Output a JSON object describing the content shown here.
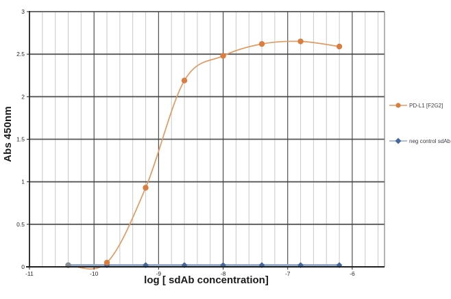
{
  "chart_data": {
    "type": "line",
    "title": "",
    "xlabel": "log [ sdAb concentration]",
    "ylabel": "Abs 450nm",
    "xlim": [
      -11,
      -5.5
    ],
    "ylim": [
      0,
      3
    ],
    "x_tick_values": [
      -11,
      -10,
      -9,
      -8,
      -7,
      -6
    ],
    "x_tick_labels": [
      "-11",
      "-10",
      "-9",
      "-8",
      "-7",
      "-6"
    ],
    "y_tick_values": [
      0,
      0.5,
      1,
      1.5,
      2,
      2.5,
      3
    ],
    "y_tick_labels": [
      "0",
      "0.5",
      "1",
      "1.5",
      "2",
      "2.5",
      "3"
    ],
    "x_minor_step": 0.2,
    "grid": "horizontal majors every 0.5; vertical majors every 1 with light minors every 0.2",
    "legend_position": "right",
    "x": [
      -10.4,
      -9.8,
      -9.2,
      -8.6,
      -8,
      -7.4,
      -6.8,
      -6.2
    ],
    "series": [
      {
        "name": "PD-L1 [F2G2]",
        "values": [
          0.02,
          0.05,
          0.93,
          2.19,
          2.48,
          2.62,
          2.65,
          2.59
        ],
        "marker": "circle",
        "smooth": true,
        "line_color": "#E09A62",
        "marker_color": "#D97E3E",
        "first_marker_color": "#8A8F96"
      },
      {
        "name": "neg control sdAb",
        "values": [
          0.02,
          0.02,
          0.02,
          0.02,
          0.02,
          0.02,
          0.02,
          0.02
        ],
        "marker": "diamond",
        "smooth": false,
        "line_color": "#94AAC6",
        "marker_color": "#44689D"
      }
    ],
    "colors": {
      "background": "#FFFFFF",
      "grid_minor": "#C8C8C8",
      "grid_major_vertical": "#3F3F3F",
      "grid_major_horizontal": "#555555",
      "plot_right_border": "#7F7F7F",
      "axis": "#1F1F1F",
      "tick_text": "#262626",
      "legend_text": "#3A3A44",
      "axis_title_text": "#1A1A1A"
    }
  }
}
